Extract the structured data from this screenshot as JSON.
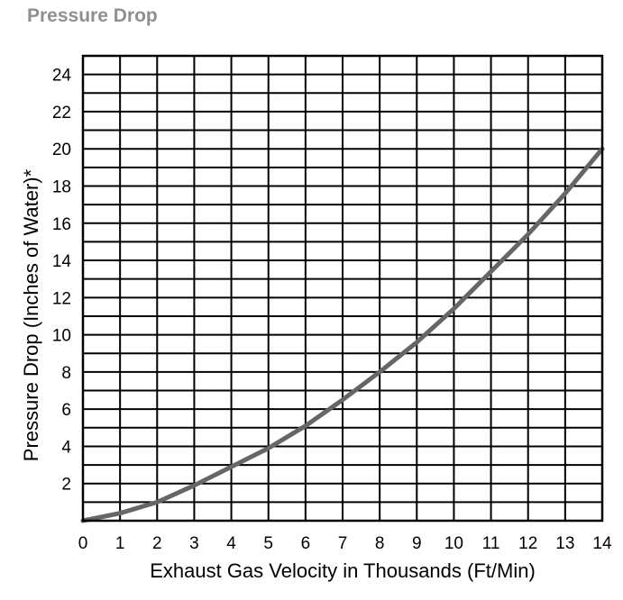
{
  "chart_data": {
    "type": "line",
    "title": "Pressure Drop",
    "xlabel": "Exhaust Gas Velocity in Thousands (Ft/Min)",
    "ylabel": "Pressure Drop (Inches of Water)*",
    "xlim": [
      0,
      14
    ],
    "ylim": [
      0,
      25
    ],
    "x_ticks": [
      0,
      1,
      2,
      3,
      4,
      5,
      6,
      7,
      8,
      9,
      10,
      11,
      12,
      13,
      14
    ],
    "y_ticks": [
      2,
      4,
      6,
      8,
      10,
      12,
      14,
      16,
      18,
      20,
      22,
      24
    ],
    "grid": true,
    "series_color": "#666666",
    "series": [
      {
        "x": [
          0,
          1,
          2,
          3,
          4,
          5,
          6,
          7,
          8,
          9,
          10,
          11,
          12,
          13,
          14
        ],
        "y": [
          0,
          0.4,
          1.0,
          1.9,
          2.9,
          3.9,
          5.1,
          6.5,
          8.0,
          9.6,
          11.4,
          13.4,
          15.4,
          17.6,
          20.0
        ]
      }
    ]
  }
}
